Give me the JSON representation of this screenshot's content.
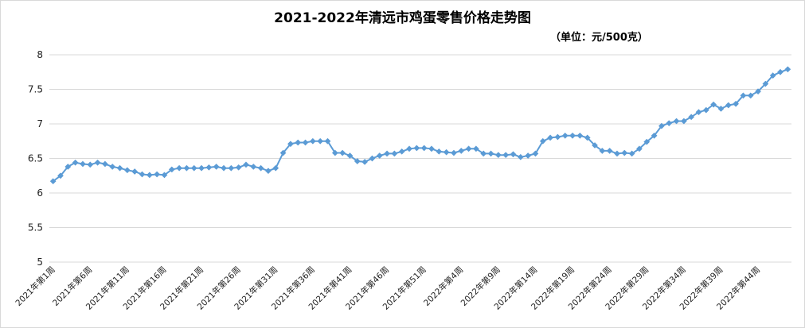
{
  "chart_data": {
    "type": "line",
    "title": "2021-2022年清远市鸡蛋零售价格走势图",
    "subtitle": "（单位：元/500克）",
    "xlabel": "",
    "ylabel": "",
    "ylim": [
      5,
      8
    ],
    "yticks": [
      "5",
      "5.5",
      "6",
      "6.5",
      "7",
      "7.5",
      "8"
    ],
    "grid": "horizontal",
    "legend": "none",
    "x_tick_labels": [
      "2021年第1周",
      "2021年第6周",
      "2021年第11周",
      "2021年第16周",
      "2021年第21周",
      "2021年第26周",
      "2021年第31周",
      "2021年第36周",
      "2021年第41周",
      "2021年第46周",
      "2021年第51周",
      "2022年第4周",
      "2022年第9周",
      "2022年第14周",
      "2022年第19周",
      "2022年第24周",
      "2022年第29周",
      "2022年第34周",
      "2022年第39周",
      "2022年第44周"
    ],
    "series": [
      {
        "color": "#5b9bd5",
        "values": [
          6.17,
          6.25,
          6.38,
          6.44,
          6.42,
          6.41,
          6.44,
          6.42,
          6.38,
          6.36,
          6.33,
          6.31,
          6.27,
          6.26,
          6.27,
          6.26,
          6.34,
          6.36,
          6.36,
          6.36,
          6.36,
          6.37,
          6.38,
          6.36,
          6.36,
          6.37,
          6.41,
          6.38,
          6.36,
          6.32,
          6.36,
          6.58,
          6.71,
          6.73,
          6.73,
          6.75,
          6.75,
          6.75,
          6.58,
          6.58,
          6.54,
          6.46,
          6.45,
          6.5,
          6.54,
          6.57,
          6.57,
          6.6,
          6.64,
          6.65,
          6.65,
          6.64,
          6.6,
          6.59,
          6.58,
          6.61,
          6.64,
          6.64,
          6.57,
          6.57,
          6.55,
          6.55,
          6.56,
          6.52,
          6.54,
          6.57,
          6.75,
          6.8,
          6.81,
          6.83,
          6.83,
          6.83,
          6.8,
          6.69,
          6.61,
          6.61,
          6.57,
          6.58,
          6.57,
          6.64,
          6.74,
          6.83,
          6.97,
          7.01,
          7.04,
          7.04,
          7.1,
          7.17,
          7.2,
          7.28,
          7.22,
          7.27,
          7.29,
          7.41,
          7.41,
          7.47,
          7.58,
          7.7,
          7.75,
          7.79
        ]
      }
    ]
  }
}
